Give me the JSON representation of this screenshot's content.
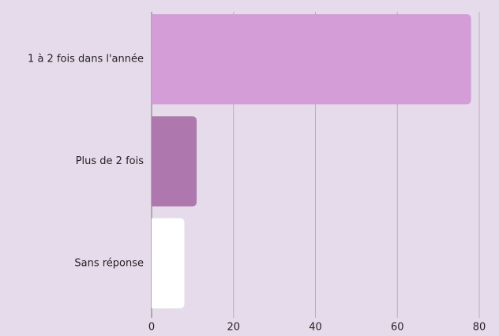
{
  "chart_data": {
    "type": "barh",
    "categories": [
      "1 à 2 fois dans l'année",
      "Plus de 2 fois",
      "Sans réponse"
    ],
    "values": [
      78,
      11,
      8
    ],
    "colors": [
      "#d49dd8",
      "#ae77ae",
      "#ffffff"
    ],
    "xlim": [
      0,
      80
    ],
    "xticks": [
      0,
      20,
      40,
      60,
      80
    ],
    "grid": true
  }
}
